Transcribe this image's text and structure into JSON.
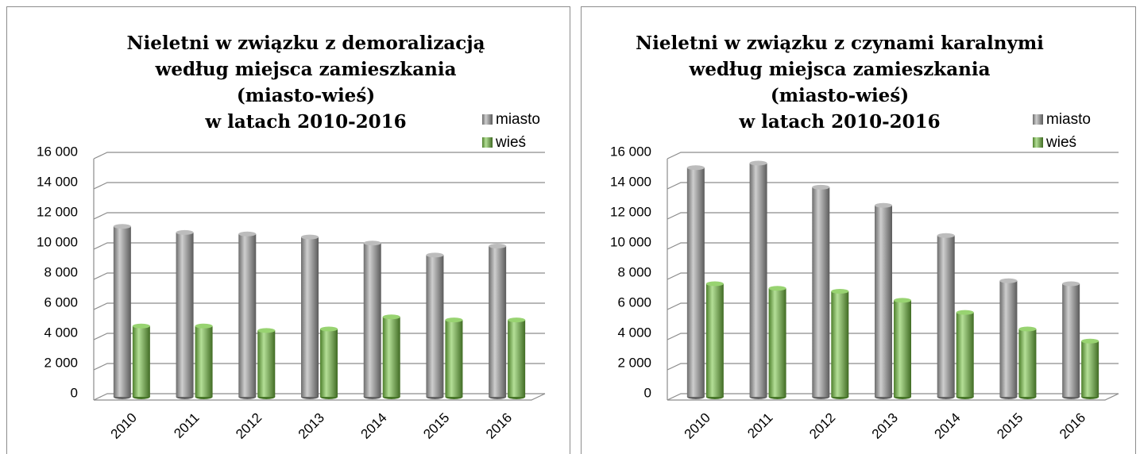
{
  "chart_data": [
    {
      "type": "bar3d",
      "title": [
        "Nieletni w związku z demoralizacją",
        "według miejsca zamieszkania",
        "(miasto-wieś)",
        "w latach 2010-2016"
      ],
      "categories": [
        "2010",
        "2011",
        "2012",
        "2013",
        "2014",
        "2015",
        "2016"
      ],
      "series": [
        {
          "name": "miasto",
          "color": "#a6a6a6",
          "values": [
            11300,
            10900,
            10800,
            10600,
            10200,
            9400,
            10000
          ]
        },
        {
          "name": "wieś",
          "color": "#76c442",
          "values": [
            4700,
            4700,
            4400,
            4500,
            5300,
            5100,
            5100
          ]
        }
      ],
      "ylim": [
        0,
        16000
      ],
      "yticks": [
        0,
        {
          "value": 2000,
          "label": "2 000"
        },
        {
          "value": 4000,
          "label": "4 000"
        },
        {
          "value": 6000,
          "label": "6 000"
        },
        {
          "value": 8000,
          "label": "8 000"
        },
        {
          "value": 10000,
          "label": "10 000"
        },
        {
          "value": 12000,
          "label": "12 000"
        },
        {
          "value": 14000,
          "label": "14 000"
        },
        {
          "value": 16000,
          "label": "16 000"
        }
      ],
      "grid": true
    },
    {
      "type": "bar3d",
      "title": [
        "Nieletni w związku z czynami karalnymi",
        "według miejsca zamieszkania",
        "(miasto-wieś)",
        "w latach 2010-2016"
      ],
      "categories": [
        "2010",
        "2011",
        "2012",
        "2013",
        "2014",
        "2015",
        "2016"
      ],
      "series": [
        {
          "name": "miasto",
          "color": "#a6a6a6",
          "values": [
            15200,
            15500,
            13900,
            12700,
            10700,
            7700,
            7500
          ]
        },
        {
          "name": "wieś",
          "color": "#76c442",
          "values": [
            7500,
            7200,
            7000,
            6400,
            5600,
            4500,
            3700
          ]
        }
      ],
      "ylim": [
        0,
        16000
      ],
      "yticks": [
        0,
        {
          "value": 2000,
          "label": "2 000"
        },
        {
          "value": 4000,
          "label": "4 000"
        },
        {
          "value": 6000,
          "label": "6 000"
        },
        {
          "value": 8000,
          "label": "8 000"
        },
        {
          "value": 10000,
          "label": "10 000"
        },
        {
          "value": 12000,
          "label": "12 000"
        },
        {
          "value": 14000,
          "label": "14 000"
        },
        {
          "value": 16000,
          "label": "16 000"
        }
      ],
      "grid": true
    }
  ]
}
